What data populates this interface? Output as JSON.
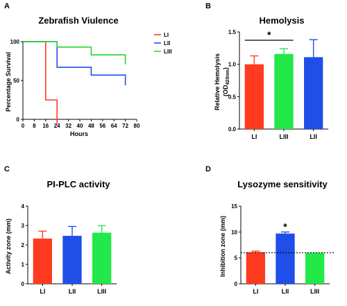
{
  "chart_data": [
    {
      "panel": "A",
      "type": "line",
      "step": true,
      "title": "Zebrafish Viulence",
      "xlabel": "Hours",
      "ylabel": "Percentage Survival",
      "xlim": [
        0,
        80
      ],
      "ylim": [
        0,
        100
      ],
      "xticks": [
        0,
        8,
        16,
        24,
        32,
        40,
        48,
        56,
        64,
        72,
        80
      ],
      "yticks": [
        0,
        50,
        100
      ],
      "legend": "top-right",
      "series": [
        {
          "name": "LI",
          "color": "#ff3b1f",
          "x": [
            0,
            16,
            24
          ],
          "y": [
            100,
            25,
            0
          ]
        },
        {
          "name": "LII",
          "color": "#1f4fe8",
          "x": [
            0,
            24,
            48,
            72
          ],
          "y": [
            100,
            67,
            57,
            50
          ]
        },
        {
          "name": "LIII",
          "color": "#22d52e",
          "x": [
            0,
            24,
            48,
            72
          ],
          "y": [
            100,
            93,
            83,
            77
          ]
        }
      ]
    },
    {
      "panel": "B",
      "type": "bar",
      "title": "Hemolysis",
      "ylabel": "Relative Hemolysis",
      "ylabel_sub": "(OD",
      "ylabel_subscript": "420nm",
      "ylabel_close": ")",
      "ylim": [
        0,
        1.5
      ],
      "yticks": [
        "0.0",
        "0.5",
        "1.0",
        "1.5"
      ],
      "categories": [
        "LI",
        "LIII",
        "LII"
      ],
      "values": [
        1.0,
        1.16,
        1.11
      ],
      "errors": [
        0.13,
        0.08,
        0.27
      ],
      "colors": [
        "#ff3b1f",
        "#22e84a",
        "#1f4fe8"
      ],
      "significance": {
        "from": 0,
        "to": 1,
        "label": "*"
      }
    },
    {
      "panel": "C",
      "type": "bar",
      "title": "PI-PLC activity",
      "ylabel": "Activity zone (mm)",
      "ylim": [
        0,
        4
      ],
      "yticks": [
        "0",
        "1",
        "2",
        "3",
        "4"
      ],
      "categories": [
        "LI",
        "LII",
        "LIII"
      ],
      "values": [
        2.33,
        2.47,
        2.63
      ],
      "errors": [
        0.38,
        0.48,
        0.36
      ],
      "colors": [
        "#ff3b1f",
        "#1f4fe8",
        "#22e84a"
      ]
    },
    {
      "panel": "D",
      "type": "bar",
      "title": "Lysozyme sensitivity",
      "ylabel": "Inhibition zone (mm)",
      "ylim": [
        0,
        15
      ],
      "yticks": [
        "0",
        "5",
        "10",
        "15"
      ],
      "categories": [
        "LI",
        "LII",
        "LIII"
      ],
      "values": [
        6.1,
        9.7,
        6.0
      ],
      "errors": [
        0.2,
        0.3,
        0.0
      ],
      "colors": [
        "#ff3b1f",
        "#1f4fe8",
        "#22e84a"
      ],
      "reference_line": 6.0,
      "annotation": {
        "index": 1,
        "label": "*"
      }
    }
  ]
}
